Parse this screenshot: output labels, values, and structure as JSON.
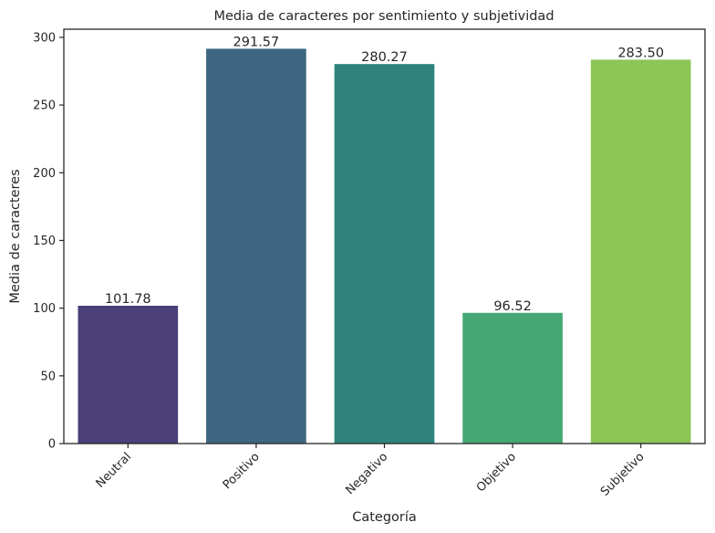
{
  "chart_data": {
    "type": "bar",
    "title": "Media de caracteres por sentimiento y subjetividad",
    "xlabel": "Categoría",
    "ylabel": "Media de caracteres",
    "categories": [
      "Neutral",
      "Positivo",
      "Negativo",
      "Objetivo",
      "Subjetivo"
    ],
    "values": [
      101.78,
      291.57,
      280.27,
      96.52,
      283.5
    ],
    "data_labels": [
      "101.78",
      "291.57",
      "280.27",
      "96.52",
      "283.50"
    ],
    "colors": [
      "#4b3f7a",
      "#3d6680",
      "#2e837c",
      "#45a874",
      "#8dc556"
    ],
    "ylim": [
      0,
      306
    ],
    "yticks": [
      0,
      50,
      100,
      150,
      200,
      250,
      300
    ],
    "grid": false,
    "legend": "none"
  }
}
